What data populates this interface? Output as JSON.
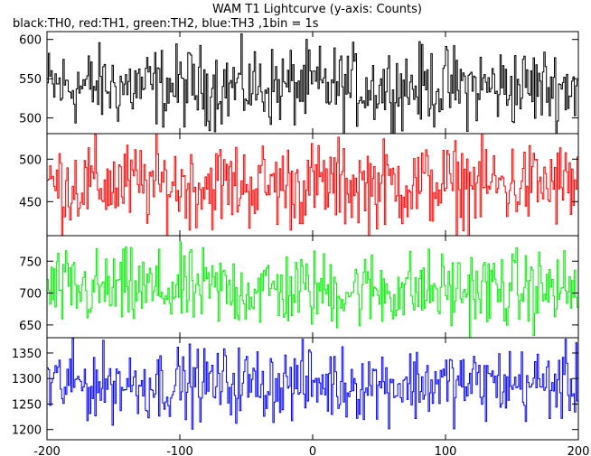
{
  "chart_data": {
    "type": "line",
    "title": "WAM T1 Lightcurve (y-axis: Counts)",
    "subtitle": "black:TH0, red:TH1, green:TH2, blue:TH3 ,1bin = 1s",
    "xlim": [
      -200,
      200
    ],
    "xticks": [
      -200,
      -100,
      0,
      100,
      200
    ],
    "grid": false,
    "x_step": 1,
    "panels": [
      {
        "color": "#000000",
        "ylim": [
          480,
          610
        ],
        "yticks": [
          500,
          550,
          600
        ],
        "mean": 540,
        "amplitude": 25
      },
      {
        "color": "#ff0000",
        "ylim": [
          410,
          530
        ],
        "yticks": [
          450,
          500
        ],
        "mean": 470,
        "amplitude": 25
      },
      {
        "color": "#00ee00",
        "ylim": [
          630,
          790
        ],
        "yticks": [
          650,
          700,
          750
        ],
        "mean": 705,
        "amplitude": 30
      },
      {
        "color": "#0000ff",
        "ylim": [
          1180,
          1380
        ],
        "yticks": [
          1200,
          1250,
          1300,
          1350
        ],
        "mean": 1290,
        "amplitude": 35
      }
    ]
  }
}
